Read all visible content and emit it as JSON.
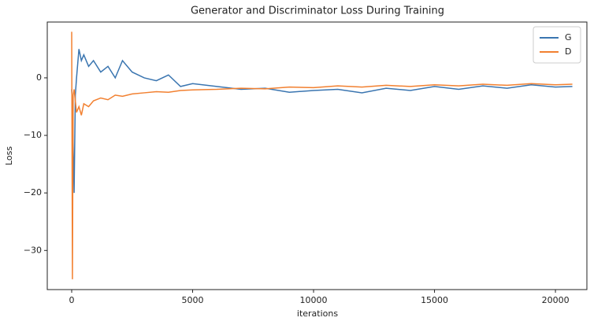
{
  "chart_data": {
    "type": "line",
    "title": "Generator and Discriminator Loss During Training",
    "xlabel": "iterations",
    "ylabel": "Loss",
    "x": [
      0,
      30,
      60,
      100,
      150,
      200,
      300,
      400,
      500,
      700,
      900,
      1200,
      1500,
      1800,
      2100,
      2500,
      3000,
      3500,
      4000,
      4500,
      5000,
      6000,
      7000,
      8000,
      9000,
      10000,
      11000,
      12000,
      13000,
      14000,
      15000,
      16000,
      17000,
      18000,
      19000,
      20000,
      20700
    ],
    "series": [
      {
        "name": "G",
        "color": "#3a75b0",
        "values": [
          -2,
          -5,
          -12,
          -20,
          -3,
          0,
          5,
          3,
          4,
          2,
          3,
          1,
          2,
          0,
          3,
          1,
          0,
          -0.5,
          0.5,
          -1.5,
          -1,
          -1.5,
          -2,
          -1.8,
          -2.5,
          -2.2,
          -2,
          -2.6,
          -1.8,
          -2.2,
          -1.5,
          -2,
          -1.4,
          -1.8,
          -1.2,
          -1.6,
          -1.5
        ]
      },
      {
        "name": "D",
        "color": "#f28030",
        "values": [
          8,
          -35,
          -3,
          -2,
          -4,
          -6,
          -5,
          -6.5,
          -4.5,
          -5,
          -4,
          -3.5,
          -3.8,
          -3,
          -3.2,
          -2.8,
          -2.6,
          -2.4,
          -2.5,
          -2.2,
          -2.1,
          -2,
          -1.8,
          -1.9,
          -1.6,
          -1.7,
          -1.4,
          -1.6,
          -1.3,
          -1.5,
          -1.2,
          -1.4,
          -1.1,
          -1.3,
          -1.0,
          -1.2,
          -1.1
        ]
      }
    ],
    "xlim": [
      -1010,
      21300
    ],
    "ylim": [
      -36.8,
      9.7
    ],
    "xticks": [
      0,
      5000,
      10000,
      15000,
      20000
    ],
    "yticks": [
      0,
      {
        "value": -10,
        "label": "−10"
      },
      {
        "value": -20,
        "label": "−20"
      },
      {
        "value": -30,
        "label": "−30"
      }
    ],
    "legend": "upper right"
  }
}
